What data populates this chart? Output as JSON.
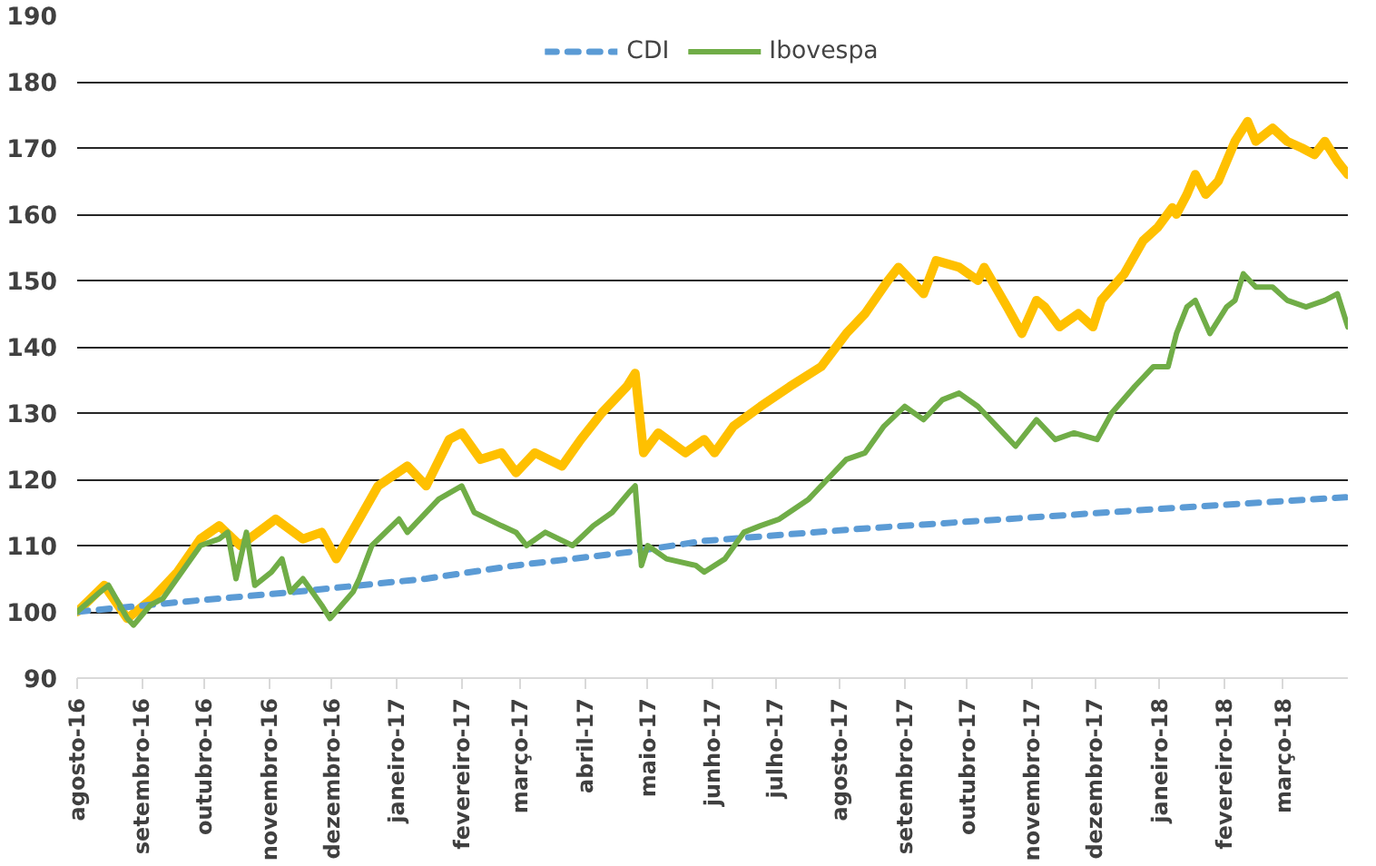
{
  "chart_data": {
    "type": "line",
    "xlim": [
      "2016-08-01",
      "2018-04-01"
    ],
    "ylim": [
      90,
      190
    ],
    "xticks": [
      {
        "value": "2016-08-01",
        "label": "agosto-16"
      },
      {
        "value": "2016-09-01",
        "label": "setembro-16"
      },
      {
        "value": "2016-10-01",
        "label": "outubro-16"
      },
      {
        "value": "2016-11-01",
        "label": "novembro-16"
      },
      {
        "value": "2016-12-01",
        "label": "dezembro-16"
      },
      {
        "value": "2017-01-01",
        "label": "janeiro-17"
      },
      {
        "value": "2017-02-01",
        "label": "fevereiro-17"
      },
      {
        "value": "2017-03-01",
        "label": "março-17"
      },
      {
        "value": "2017-04-01",
        "label": "abril-17"
      },
      {
        "value": "2017-05-01",
        "label": "maio-17"
      },
      {
        "value": "2017-06-01",
        "label": "junho-17"
      },
      {
        "value": "2017-07-01",
        "label": "julho-17"
      },
      {
        "value": "2017-08-01",
        "label": "agosto-17"
      },
      {
        "value": "2017-09-01",
        "label": "setembro-17"
      },
      {
        "value": "2017-10-01",
        "label": "outubro-17"
      },
      {
        "value": "2017-11-01",
        "label": "novembro-17"
      },
      {
        "value": "2017-12-01",
        "label": "dezembro-17"
      },
      {
        "value": "2018-01-01",
        "label": "janeiro-18"
      },
      {
        "value": "2018-02-01",
        "label": "fevereiro-18"
      },
      {
        "value": "2018-03-01",
        "label": "março-18"
      }
    ],
    "yticks": [
      90,
      100,
      110,
      120,
      130,
      140,
      150,
      160,
      170,
      180,
      190
    ],
    "grid": "y",
    "legend": "top",
    "marker": "none",
    "series": [
      {
        "color": "#ffc000",
        "line_style": "solid",
        "x": [
          "2016-08-01",
          "2016-08-14",
          "2016-08-25",
          "2016-09-06",
          "2016-09-18",
          "2016-09-29",
          "2016-10-08",
          "2016-10-18",
          "2016-11-04",
          "2016-11-17",
          "2016-11-26",
          "2016-12-03",
          "2016-12-14",
          "2016-12-23",
          "2017-01-06",
          "2017-01-15",
          "2017-01-26",
          "2017-02-01",
          "2017-02-10",
          "2017-02-20",
          "2017-02-27",
          "2017-03-08",
          "2017-03-21",
          "2017-03-30",
          "2017-04-09",
          "2017-04-21",
          "2017-04-25",
          "2017-04-29",
          "2017-05-06",
          "2017-05-19",
          "2017-05-28",
          "2017-06-02",
          "2017-06-11",
          "2017-06-24",
          "2017-07-08",
          "2017-07-23",
          "2017-08-04",
          "2017-08-13",
          "2017-08-24",
          "2017-08-29",
          "2017-09-10",
          "2017-09-16",
          "2017-09-27",
          "2017-10-06",
          "2017-10-09",
          "2017-10-20",
          "2017-10-27",
          "2017-11-03",
          "2017-11-07",
          "2017-11-14",
          "2017-11-23",
          "2017-11-30",
          "2017-12-04",
          "2017-12-15",
          "2017-12-24",
          "2017-12-31",
          "2018-01-07",
          "2018-01-09",
          "2018-01-14",
          "2018-01-18",
          "2018-01-23",
          "2018-01-29",
          "2018-02-06",
          "2018-02-12",
          "2018-02-16",
          "2018-02-24",
          "2018-03-03",
          "2018-03-10",
          "2018-03-16",
          "2018-03-21",
          "2018-03-27",
          "2018-04-01"
        ],
        "values": [
          100,
          104,
          99,
          102,
          106,
          111,
          113,
          110,
          114,
          111,
          112,
          108,
          114,
          119,
          122,
          119,
          126,
          127,
          123,
          124,
          121,
          124,
          122,
          126,
          130,
          134,
          136,
          124,
          127,
          124,
          126,
          124,
          128,
          131,
          134,
          137,
          142,
          145,
          150,
          152,
          148,
          153,
          152,
          150,
          152,
          146,
          142,
          147,
          146,
          143,
          145,
          143,
          147,
          151,
          156,
          158,
          161,
          160,
          163,
          166,
          163,
          165,
          171,
          174,
          171,
          173,
          171,
          170,
          169,
          171,
          168,
          166
        ]
      },
      {
        "name": "CDI",
        "color": "#5b9bd5",
        "line_style": "dashed",
        "x": [
          "2016-08-01",
          "2016-09-20",
          "2016-11-13",
          "2017-01-15",
          "2017-02-27",
          "2017-04-22",
          "2017-05-28",
          "2017-08-09",
          "2017-10-20",
          "2018-01-09",
          "2018-04-01"
        ],
        "values": [
          100,
          101.5,
          103,
          105,
          107,
          109,
          110.7,
          112.5,
          114,
          115.7,
          117.3
        ]
      },
      {
        "name": "Ibovespa",
        "color": "#70ad47",
        "line_style": "solid",
        "x": [
          "2016-08-01",
          "2016-08-12",
          "2016-08-16",
          "2016-08-25",
          "2016-08-28",
          "2016-09-05",
          "2016-09-11",
          "2016-09-20",
          "2016-09-29",
          "2016-10-08",
          "2016-10-12",
          "2016-10-16",
          "2016-10-21",
          "2016-10-25",
          "2016-11-02",
          "2016-11-07",
          "2016-11-11",
          "2016-11-17",
          "2016-11-26",
          "2016-11-30",
          "2016-12-11",
          "2016-12-14",
          "2016-12-20",
          "2017-01-02",
          "2017-01-06",
          "2017-01-21",
          "2017-02-01",
          "2017-02-07",
          "2017-02-20",
          "2017-02-27",
          "2017-03-04",
          "2017-03-13",
          "2017-03-26",
          "2017-04-05",
          "2017-04-14",
          "2017-04-22",
          "2017-04-25",
          "2017-04-28",
          "2017-05-01",
          "2017-05-10",
          "2017-05-24",
          "2017-05-28",
          "2017-06-07",
          "2017-06-16",
          "2017-06-24",
          "2017-07-03",
          "2017-07-17",
          "2017-07-26",
          "2017-08-04",
          "2017-08-13",
          "2017-08-22",
          "2017-09-01",
          "2017-09-10",
          "2017-09-19",
          "2017-09-27",
          "2017-10-06",
          "2017-10-15",
          "2017-10-24",
          "2017-11-03",
          "2017-11-12",
          "2017-11-21",
          "2017-12-02",
          "2017-12-09",
          "2017-12-20",
          "2017-12-29",
          "2018-01-05",
          "2018-01-09",
          "2018-01-14",
          "2018-01-18",
          "2018-01-25",
          "2018-02-02",
          "2018-02-06",
          "2018-02-10",
          "2018-02-16",
          "2018-02-24",
          "2018-03-03",
          "2018-03-12",
          "2018-03-21",
          "2018-03-27",
          "2018-04-01"
        ],
        "values": [
          100,
          103,
          104,
          99,
          98,
          101,
          102,
          106,
          110,
          111,
          112,
          105,
          112,
          104,
          106,
          108,
          103,
          105,
          101,
          99,
          103,
          105,
          110,
          114,
          112,
          117,
          119,
          115,
          113,
          112,
          110,
          112,
          110,
          113,
          115,
          118,
          119,
          107,
          110,
          108,
          107,
          106,
          108,
          112,
          113,
          114,
          117,
          120,
          123,
          124,
          128,
          131,
          129,
          132,
          133,
          131,
          128,
          125,
          129,
          126,
          127,
          126,
          130,
          134,
          137,
          137,
          142,
          146,
          147,
          142,
          146,
          147,
          151,
          149,
          149,
          147,
          146,
          147,
          148,
          143
        ]
      }
    ]
  }
}
